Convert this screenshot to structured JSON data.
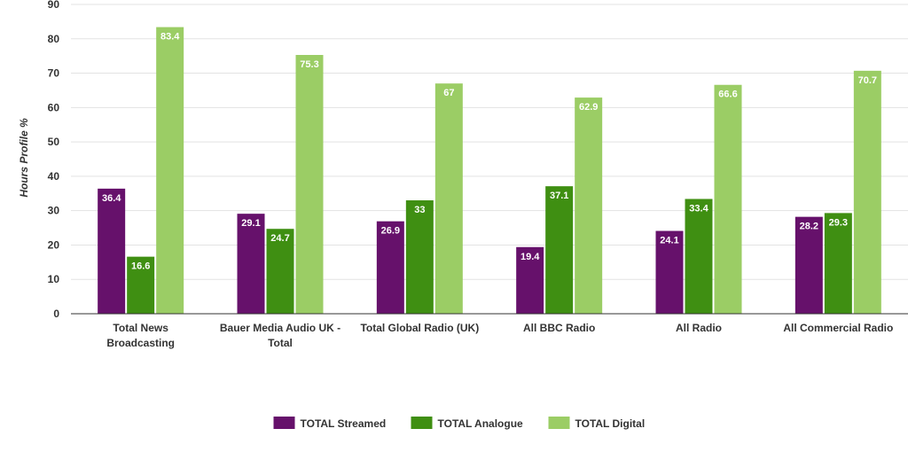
{
  "chart_data": {
    "type": "bar",
    "title": "",
    "xlabel": "",
    "ylabel": "Hours Profile %",
    "ylim": [
      0,
      90
    ],
    "yticks": [
      0,
      10,
      20,
      30,
      40,
      50,
      60,
      70,
      80,
      90
    ],
    "grid": true,
    "legend_position": "bottom",
    "categories": [
      [
        "Total News",
        "Broadcasting"
      ],
      [
        "Bauer Media Audio UK -",
        "Total"
      ],
      [
        "Total Global Radio (UK)"
      ],
      [
        "All BBC Radio"
      ],
      [
        "All Radio"
      ],
      [
        "All Commercial Radio"
      ]
    ],
    "series": [
      {
        "name": "TOTAL Streamed",
        "color": "#66116b",
        "values": [
          36.4,
          29.1,
          26.9,
          19.4,
          24.1,
          28.2
        ]
      },
      {
        "name": "TOTAL Analogue",
        "color": "#3f8f12",
        "values": [
          16.6,
          24.7,
          33,
          37.1,
          33.4,
          29.3
        ]
      },
      {
        "name": "TOTAL Digital",
        "color": "#9bcd65",
        "values": [
          83.4,
          75.3,
          67,
          62.9,
          66.6,
          70.7
        ]
      }
    ]
  }
}
